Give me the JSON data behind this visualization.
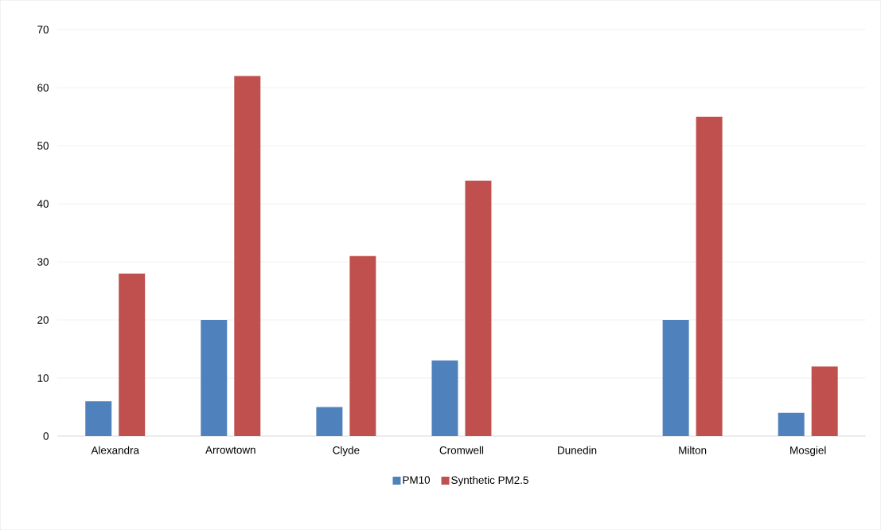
{
  "chart_data": {
    "type": "bar",
    "categories": [
      "Alexandra",
      "Arrowtown",
      "Clyde",
      "Cromwell",
      "Dunedin",
      "Milton",
      "Mosgiel"
    ],
    "series": [
      {
        "name": "PM10",
        "color": "#4f81bd",
        "values": [
          6,
          20,
          5,
          13,
          null,
          20,
          4
        ]
      },
      {
        "name": "Synthetic PM2.5",
        "color": "#c0504d",
        "values": [
          28,
          62,
          31,
          44,
          null,
          55,
          12
        ]
      }
    ],
    "ylim": [
      0,
      70
    ],
    "yticks": [
      0,
      10,
      20,
      30,
      40,
      50,
      60,
      70
    ],
    "grid": "y",
    "legend": "bottom"
  }
}
